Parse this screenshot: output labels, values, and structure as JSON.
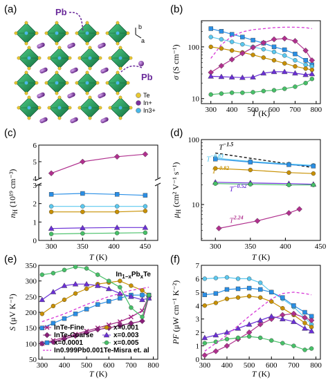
{
  "figure": {
    "panel_labels": [
      "(a)",
      "(b)",
      "(c)",
      "(d)",
      "(e)",
      "(f)"
    ],
    "structure": {
      "pb_label": "Pb",
      "axis_b": "b",
      "axis_a": "a",
      "legend": [
        {
          "label": "Te",
          "color": "#e8c832"
        },
        {
          "label": "In+",
          "color": "#7a2e9e"
        },
        {
          "label": "In3+",
          "color": "#49b8e8"
        }
      ]
    }
  },
  "chart_data": [
    {
      "id": "b",
      "type": "line",
      "ylog": true,
      "xlabel_var": "T",
      "xlabel_unit": " (K)",
      "ylabel_var": "σ",
      "ylabel_unit": " (S cm⁻¹)",
      "xlim": [
        255,
        820
      ],
      "ylim": [
        8,
        320
      ],
      "xticks": [
        300,
        400,
        500,
        600,
        700,
        800
      ],
      "yticks": [
        10,
        100
      ],
      "series": [
        {
          "color": "#2a8fe6",
          "marker": "square",
          "x": [
            300,
            350,
            400,
            450,
            500,
            550,
            600,
            650,
            700,
            750,
            780
          ],
          "y": [
            225,
            200,
            175,
            155,
            135,
            118,
            100,
            88,
            73,
            55,
            45
          ]
        },
        {
          "color": "#5bc8ef",
          "marker": "circle",
          "x": [
            300,
            350,
            400,
            450,
            500,
            550,
            600,
            650,
            700,
            750,
            780
          ],
          "y": [
            155,
            140,
            125,
            112,
            100,
            90,
            80,
            68,
            55,
            45,
            42
          ]
        },
        {
          "color": "#c89000",
          "marker": "circle",
          "x": [
            300,
            350,
            400,
            450,
            500,
            550,
            600,
            650,
            700,
            750,
            780
          ],
          "y": [
            100,
            93,
            85,
            78,
            70,
            62,
            55,
            48,
            42,
            38,
            36
          ]
        },
        {
          "color": "#b0308e",
          "marker": "diamond",
          "x": [
            300,
            350,
            400,
            450,
            500,
            550,
            600,
            650,
            700,
            750,
            780
          ],
          "y": [
            32,
            43,
            57,
            75,
            97,
            120,
            140,
            145,
            130,
            85,
            55
          ]
        },
        {
          "color": "#6a2fd6",
          "marker": "triangle",
          "x": [
            300,
            350,
            400,
            450,
            500,
            550,
            600,
            650,
            700,
            750,
            780
          ],
          "y": [
            27,
            26.5,
            26,
            25.5,
            26,
            31,
            33,
            33,
            31,
            29,
            30
          ]
        },
        {
          "color": "#47c068",
          "marker": "circle",
          "x": [
            300,
            350,
            400,
            450,
            500,
            550,
            600,
            650,
            700,
            750,
            780
          ],
          "y": [
            12,
            12.5,
            13,
            13,
            13.3,
            14,
            14.5,
            15.5,
            17,
            20,
            24
          ]
        },
        {
          "color": "#d637d6",
          "marker": "none",
          "dash": true,
          "x": [
            300,
            350,
            400,
            450,
            500,
            550,
            600,
            650,
            700,
            750,
            780
          ],
          "y": [
            60,
            110,
            160,
            195,
            215,
            225,
            235,
            240,
            240,
            235,
            225
          ]
        }
      ]
    },
    {
      "id": "c",
      "type": "line",
      "broken_axis": true,
      "xlabel_var": "T",
      "xlabel_unit": " (K)",
      "ylabel_var": "n",
      "ylabel_sub": "H",
      "ylabel_unit": " (10¹⁹ cm⁻³)",
      "xlim": [
        280,
        470
      ],
      "xticks": [
        300,
        350,
        400,
        450
      ],
      "upper": {
        "ylim": [
          4,
          6
        ],
        "yticks": [
          4,
          5,
          6
        ]
      },
      "lower": {
        "ylim": [
          0,
          3
        ],
        "yticks": [
          0,
          1,
          2,
          3
        ]
      },
      "series": [
        {
          "color": "#b0308e",
          "marker": "diamond",
          "x": [
            300,
            350,
            405,
            450
          ],
          "y": [
            4.3,
            5.0,
            5.3,
            5.45
          ]
        },
        {
          "color": "#2a8fe6",
          "marker": "square",
          "x": [
            300,
            350,
            405,
            450
          ],
          "y": [
            2.5,
            2.55,
            2.5,
            2.45
          ]
        },
        {
          "color": "#5bc8ef",
          "marker": "circle",
          "x": [
            300,
            350,
            405,
            450
          ],
          "y": [
            1.85,
            1.85,
            1.85,
            1.85
          ]
        },
        {
          "color": "#c89000",
          "marker": "circle",
          "x": [
            300,
            350,
            405,
            450
          ],
          "y": [
            1.55,
            1.55,
            1.55,
            1.6
          ]
        },
        {
          "color": "#6a2fd6",
          "marker": "triangle",
          "x": [
            300,
            350,
            405,
            450
          ],
          "y": [
            0.65,
            0.68,
            0.7,
            0.7
          ]
        },
        {
          "color": "#47c068",
          "marker": "circle",
          "x": [
            300,
            350,
            405,
            450
          ],
          "y": [
            0.35,
            0.38,
            0.4,
            0.42
          ]
        }
      ]
    },
    {
      "id": "d",
      "type": "line",
      "ylog": true,
      "xlabel_var": "T",
      "xlabel_unit": " (K)",
      "ylabel_var": "μ",
      "ylabel_sub": "H",
      "ylabel_unit": " (cm² V⁻¹ s⁻¹)",
      "xlim": [
        280,
        450
      ],
      "ylim": [
        2.8,
        100
      ],
      "xticks": [
        300,
        350,
        400,
        450
      ],
      "yticks": [
        10,
        100
      ],
      "series": [
        {
          "color": "#000000",
          "marker": "none",
          "dash": true,
          "x": [
            300,
            440
          ],
          "y": [
            62,
            37
          ]
        },
        {
          "color": "#5bc8ef",
          "marker": "circle",
          "x": [
            300,
            350,
            405,
            440
          ],
          "y": [
            52,
            46,
            42,
            40
          ]
        },
        {
          "color": "#2a8fe6",
          "marker": "square",
          "x": [
            300,
            350,
            405,
            440
          ],
          "y": [
            50,
            45,
            41,
            39
          ]
        },
        {
          "color": "#c89000",
          "marker": "circle",
          "x": [
            300,
            350,
            405,
            440
          ],
          "y": [
            36,
            34,
            31,
            30
          ]
        },
        {
          "color": "#6a2fd6",
          "marker": "triangle",
          "x": [
            300,
            350,
            405,
            440
          ],
          "y": [
            22,
            21.5,
            21,
            20.5
          ]
        },
        {
          "color": "#47c068",
          "marker": "circle",
          "x": [
            300,
            350,
            405,
            440
          ],
          "y": [
            21,
            20.5,
            20,
            20
          ]
        },
        {
          "color": "#b0308e",
          "marker": "diamond",
          "x": [
            305,
            360,
            405,
            420
          ],
          "y": [
            4.3,
            5.6,
            7.4,
            8.5
          ]
        }
      ],
      "annotations": [
        {
          "base": "T",
          "exp": "−1.5",
          "color": "#000000",
          "x": 305,
          "y": 70
        },
        {
          "base": "T",
          "exp": "−0.83",
          "color": "#5bc8ef",
          "x": 287,
          "y": 46
        },
        {
          "base": "T",
          "exp": "−0.82",
          "color": "#c89000",
          "x": 295,
          "y": 30
        },
        {
          "base": "T",
          "exp": "−0.52",
          "color": "#6a2fd6",
          "x": 320,
          "y": 16
        },
        {
          "base": "T",
          "exp": "2.24",
          "color": "#b0308e",
          "x": 320,
          "y": 5.2
        }
      ]
    },
    {
      "id": "e",
      "type": "line",
      "xlabel_var": "T",
      "xlabel_unit": " (K)",
      "ylabel_var": "S",
      "ylabel_unit": " (μV K⁻¹)",
      "xlim": [
        285,
        820
      ],
      "ylim": [
        50,
        350
      ],
      "xticks": [
        300,
        400,
        500,
        600,
        700,
        800
      ],
      "yticks": [
        50,
        100,
        150,
        200,
        250,
        300,
        350
      ],
      "series": [
        {
          "name": "InTe-Fine",
          "color": "#a02080",
          "marker": "cross",
          "x": [
            300,
            350,
            400,
            450,
            500,
            550,
            600,
            650,
            700,
            750,
            780
          ],
          "y": [
            100,
            110,
            120,
            130,
            140,
            150,
            160,
            170,
            185,
            205,
            250
          ]
        },
        {
          "name": "InTe-Coarse",
          "color": "#8a1f7a",
          "marker": "diamond",
          "x": [
            300,
            350,
            400,
            450,
            500,
            550,
            600,
            650,
            700,
            750,
            780
          ],
          "y": [
            100,
            105,
            115,
            125,
            135,
            145,
            150,
            158,
            165,
            172,
            250
          ]
        },
        {
          "name": "x=0.0001",
          "color": "#2a8fe6",
          "marker": "square",
          "x": [
            300,
            350,
            400,
            450,
            500,
            550,
            600,
            650,
            700,
            750,
            780
          ],
          "y": [
            150,
            165,
            180,
            195,
            210,
            225,
            235,
            245,
            255,
            255,
            255
          ]
        },
        {
          "name": "x=0.001",
          "color": "#c89000",
          "marker": "circle",
          "x": [
            300,
            350,
            400,
            450,
            500,
            550,
            600,
            650,
            700,
            750,
            780
          ],
          "y": [
            195,
            220,
            240,
            260,
            275,
            290,
            295,
            300,
            285,
            270,
            255
          ]
        },
        {
          "name": "x=0.003",
          "color": "#6a2fd6",
          "marker": "triangle",
          "x": [
            300,
            350,
            400,
            450,
            500,
            550,
            600,
            650,
            700,
            750,
            780
          ],
          "y": [
            240,
            265,
            285,
            290,
            290,
            285,
            275,
            260,
            250,
            240,
            245
          ]
        },
        {
          "name": "x=0.005",
          "color": "#47c068",
          "marker": "circle",
          "x": [
            300,
            350,
            400,
            450,
            500,
            550,
            600,
            650,
            700,
            750,
            780
          ],
          "y": [
            320,
            325,
            335,
            345,
            340,
            320,
            300,
            280,
            215,
            185,
            255
          ]
        },
        {
          "name": "In0.999Pb0.001Te-Misra et. al",
          "color": "#d637d6",
          "marker": "none",
          "dash": true,
          "x": [
            300,
            400,
            500,
            600,
            700,
            780
          ],
          "y": [
            170,
            195,
            225,
            250,
            270,
            280
          ]
        }
      ],
      "title_main": "In",
      "title_sub": "1−x",
      "title_mid": "Pb",
      "title_sub2": "x",
      "title_end": "Te",
      "legend": [
        {
          "label": "InTe-Fine",
          "color": "#a02080",
          "marker": "cross"
        },
        {
          "label": "x=0.001",
          "color": "#c89000",
          "marker": "circle"
        },
        {
          "label": "InTe-Coarse",
          "color": "#8a1f7a",
          "marker": "diamond"
        },
        {
          "label": "x=0.003",
          "color": "#6a2fd6",
          "marker": "triangle"
        },
        {
          "label": "x=0.0001",
          "color": "#2a8fe6",
          "marker": "square"
        },
        {
          "label": "x=0.005",
          "color": "#47c068",
          "marker": "circle"
        },
        {
          "label": "In0.999Pb0.001Te-Misra et. al",
          "color": "#d637d6",
          "marker": "dash"
        }
      ]
    },
    {
      "id": "f",
      "type": "line",
      "xlabel_var": "T",
      "xlabel_unit": " (K)",
      "ylabel_var": "PF",
      "ylabel_unit": " (μW cm⁻¹ K⁻²)",
      "xlim": [
        285,
        820
      ],
      "ylim": [
        0,
        7
      ],
      "xticks": [
        300,
        400,
        500,
        600,
        700,
        800
      ],
      "yticks": [
        0,
        1,
        2,
        3,
        4,
        5,
        6,
        7
      ],
      "series": [
        {
          "color": "#5bc8ef",
          "marker": "circle",
          "x": [
            300,
            350,
            400,
            450,
            500,
            550,
            600,
            650,
            700,
            750,
            780
          ],
          "y": [
            6.0,
            6.05,
            6.1,
            6.0,
            6.0,
            5.7,
            5.0,
            4.5,
            3.9,
            3.1,
            2.6
          ]
        },
        {
          "color": "#2a8fe6",
          "marker": "square",
          "x": [
            300,
            350,
            400,
            450,
            500,
            550,
            600,
            650,
            700,
            750,
            780
          ],
          "y": [
            4.8,
            4.9,
            5.2,
            5.25,
            5.3,
            5.2,
            5.0,
            4.6,
            4.0,
            3.5,
            3.2
          ]
        },
        {
          "color": "#c89000",
          "marker": "circle",
          "x": [
            300,
            350,
            400,
            450,
            500,
            550,
            600,
            650,
            700,
            750,
            780
          ],
          "y": [
            4.0,
            4.2,
            4.5,
            4.6,
            4.7,
            4.6,
            4.3,
            3.8,
            3.3,
            2.7,
            2.4
          ]
        },
        {
          "color": "#b0308e",
          "marker": "diamond",
          "x": [
            300,
            350,
            400,
            450,
            500,
            550,
            600,
            650,
            700,
            750,
            780
          ],
          "y": [
            0.3,
            0.6,
            1.0,
            1.5,
            2.0,
            2.6,
            3.0,
            3.3,
            3.4,
            3.1,
            2.9
          ]
        },
        {
          "color": "#6a2fd6",
          "marker": "triangle",
          "x": [
            300,
            350,
            400,
            450,
            500,
            550,
            600,
            650,
            700,
            750,
            780
          ],
          "y": [
            1.6,
            1.8,
            2.0,
            2.3,
            2.6,
            2.9,
            3.2,
            3.0,
            2.8,
            2.3,
            2.1
          ]
        },
        {
          "color": "#47c068",
          "marker": "circle",
          "x": [
            300,
            350,
            400,
            450,
            500,
            550,
            600,
            650,
            700,
            750,
            780
          ],
          "y": [
            1.2,
            1.3,
            1.5,
            1.6,
            1.7,
            1.6,
            1.4,
            1.2,
            1.0,
            0.7,
            0.8
          ]
        },
        {
          "color": "#d637d6",
          "marker": "none",
          "dash": true,
          "x": [
            300,
            400,
            500,
            600,
            650,
            700,
            750,
            780
          ],
          "y": [
            0.6,
            1.8,
            3.2,
            4.5,
            4.9,
            5.0,
            4.9,
            4.8
          ]
        }
      ]
    }
  ]
}
